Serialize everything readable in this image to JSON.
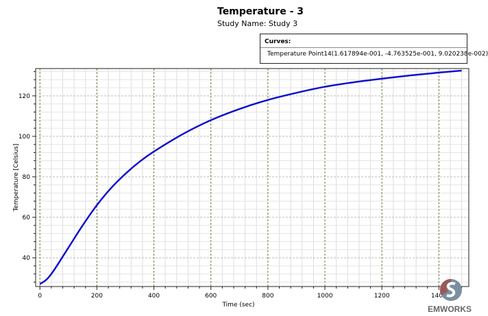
{
  "chart_data": {
    "type": "line",
    "title": "Temperature - 3",
    "subtitle": "Study Name: Study 3",
    "xlabel": "Time (sec)",
    "ylabel": "Temperature [Celsius]",
    "xlim": [
      -15,
      1505
    ],
    "ylim": [
      25.8,
      133.5
    ],
    "xticks": [
      0,
      200,
      400,
      600,
      800,
      1000,
      1200,
      1400
    ],
    "yticks": [
      40,
      60,
      80,
      100,
      120
    ],
    "grid": true,
    "legend_title": "Curves:",
    "legend_position": "top-right",
    "series": [
      {
        "name": "Temperature Point14(1.617894e-001, -4.763525e-001, 9.020238e-002)",
        "color": "#1010d0",
        "x": [
          0,
          25,
          50,
          100,
          150,
          200,
          250,
          300,
          350,
          400,
          500,
          600,
          700,
          800,
          900,
          1000,
          1100,
          1200,
          1300,
          1400,
          1480
        ],
        "y": [
          27,
          29.5,
          34,
          45,
          56,
          66,
          74.5,
          81.5,
          87.5,
          92.5,
          101,
          108,
          113.5,
          118,
          121.5,
          124.5,
          126.7,
          128.5,
          130.1,
          131.5,
          132.5
        ]
      }
    ]
  },
  "branding": {
    "logo_text": "EMWORKS"
  }
}
